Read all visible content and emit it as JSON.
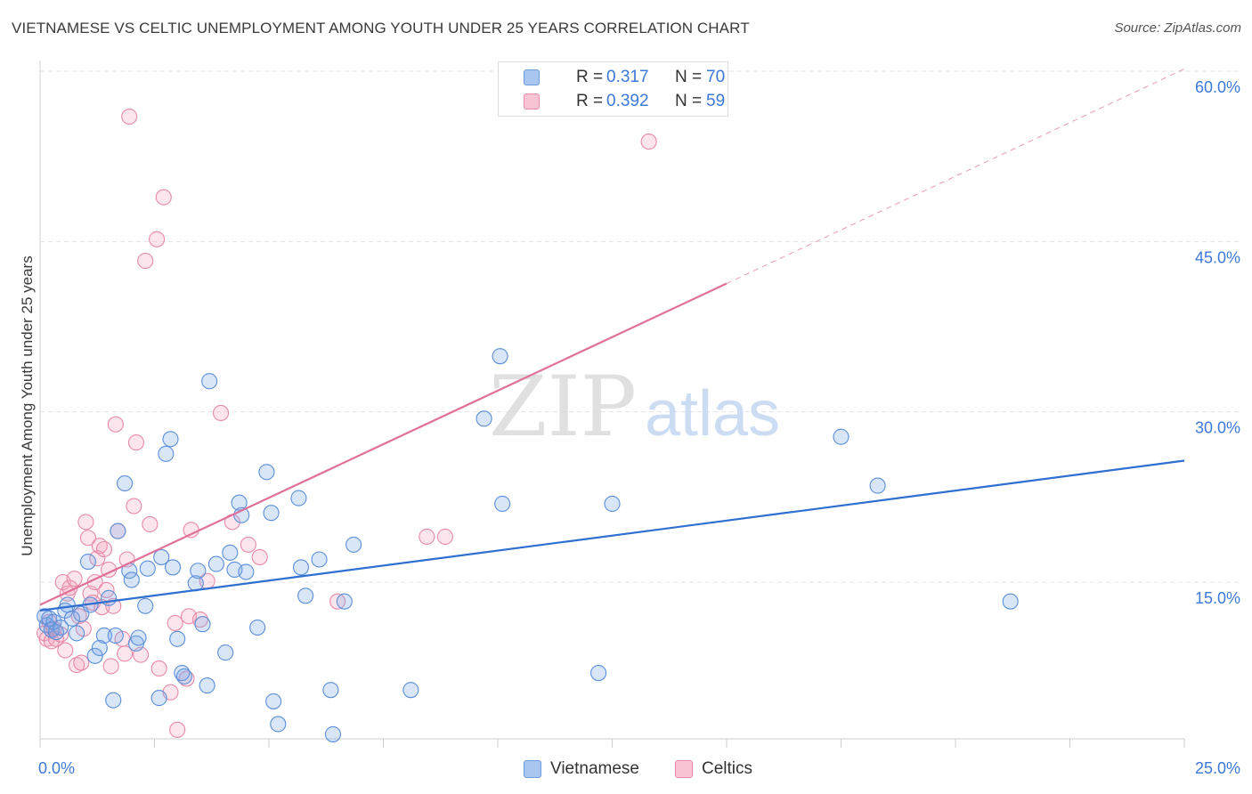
{
  "header": {
    "title": "VIETNAMESE VS CELTIC UNEMPLOYMENT AMONG YOUTH UNDER 25 YEARS CORRELATION CHART",
    "source": "Source: ZipAtlas.com"
  },
  "watermark": {
    "zip": "ZIP",
    "atlas": "atlas"
  },
  "legend_top": [
    {
      "r_label": "R =",
      "r_value": "0.317",
      "n_label": "N =",
      "n_value": "70",
      "swatch_color": "#a9c6f0",
      "swatch_border": "#6d9be0"
    },
    {
      "r_label": "R =",
      "r_value": "0.392",
      "n_label": "N =",
      "n_value": "59",
      "swatch_color": "#f8c3d3",
      "swatch_border": "#e88aa8"
    }
  ],
  "legend_bottom": [
    {
      "label": "Vietnamese",
      "swatch_color": "#a9c6f0",
      "swatch_border": "#6d9be0"
    },
    {
      "label": "Celtics",
      "swatch_color": "#f8c3d3",
      "swatch_border": "#e88aa8"
    }
  ],
  "colors": {
    "vietnamese_fill": "rgba(120,165,230,0.28)",
    "vietnamese_stroke": "#5b8fd9",
    "vietnamese_line": "#2f6fd0",
    "celtics_fill": "rgba(244,160,185,0.28)",
    "celtics_stroke": "#e88aa8",
    "celtics_line": "#e0709a",
    "grid": "#e3e3e3",
    "axis_label": "#3c78d8"
  },
  "chart_data": {
    "type": "scatter",
    "title": "VIETNAMESE VS CELTIC UNEMPLOYMENT AMONG YOUTH UNDER 25 YEARS CORRELATION CHART",
    "xlabel": "",
    "ylabel": "Unemployment Among Youth under 25 years",
    "xlim": [
      0,
      25
    ],
    "ylim": [
      0,
      62
    ],
    "x_tick_labels": [
      {
        "value": 0,
        "label": "0.0%"
      },
      {
        "value": 25,
        "label": "25.0%"
      }
    ],
    "y_tick_labels": [
      {
        "value": 15,
        "label": "15.0%"
      },
      {
        "value": 30,
        "label": "30.0%"
      },
      {
        "value": 45,
        "label": "45.0%"
      },
      {
        "value": 60,
        "label": "60.0%"
      }
    ],
    "grid": true,
    "legend_position": "top-center",
    "series": [
      {
        "name": "Vietnamese",
        "points": [
          [
            0.1,
            12.0
          ],
          [
            0.15,
            11.2
          ],
          [
            0.2,
            11.8
          ],
          [
            0.25,
            10.8
          ],
          [
            0.3,
            11.5
          ],
          [
            0.35,
            10.6
          ],
          [
            0.45,
            11.0
          ],
          [
            0.55,
            12.5
          ],
          [
            0.6,
            13.0
          ],
          [
            0.7,
            11.8
          ],
          [
            0.8,
            10.5
          ],
          [
            0.9,
            12.2
          ],
          [
            1.05,
            16.8
          ],
          [
            1.1,
            13.0
          ],
          [
            1.2,
            8.5
          ],
          [
            1.3,
            9.2
          ],
          [
            1.4,
            10.3
          ],
          [
            1.5,
            13.6
          ],
          [
            1.6,
            4.6
          ],
          [
            1.65,
            10.3
          ],
          [
            1.7,
            19.5
          ],
          [
            1.85,
            23.7
          ],
          [
            1.95,
            16.0
          ],
          [
            2.0,
            15.2
          ],
          [
            2.1,
            9.6
          ],
          [
            2.15,
            10.1
          ],
          [
            2.3,
            12.9
          ],
          [
            2.35,
            16.2
          ],
          [
            2.6,
            4.8
          ],
          [
            2.65,
            17.2
          ],
          [
            2.75,
            26.3
          ],
          [
            2.85,
            27.6
          ],
          [
            2.9,
            16.3
          ],
          [
            3.0,
            10.0
          ],
          [
            3.1,
            7.0
          ],
          [
            3.15,
            6.7
          ],
          [
            3.4,
            14.9
          ],
          [
            3.45,
            16.0
          ],
          [
            3.55,
            11.3
          ],
          [
            3.65,
            5.9
          ],
          [
            3.7,
            32.7
          ],
          [
            3.85,
            16.6
          ],
          [
            4.05,
            8.8
          ],
          [
            4.15,
            17.6
          ],
          [
            4.25,
            16.1
          ],
          [
            4.35,
            22.0
          ],
          [
            4.4,
            20.9
          ],
          [
            4.5,
            15.9
          ],
          [
            4.75,
            11.0
          ],
          [
            4.95,
            24.7
          ],
          [
            5.05,
            21.1
          ],
          [
            5.1,
            4.5
          ],
          [
            5.2,
            2.5
          ],
          [
            5.65,
            22.4
          ],
          [
            5.7,
            16.3
          ],
          [
            5.8,
            13.8
          ],
          [
            6.1,
            17.0
          ],
          [
            6.35,
            5.5
          ],
          [
            6.4,
            1.6
          ],
          [
            6.65,
            13.3
          ],
          [
            6.85,
            18.3
          ],
          [
            8.1,
            5.5
          ],
          [
            9.7,
            29.4
          ],
          [
            10.05,
            34.9
          ],
          [
            10.1,
            21.9
          ],
          [
            12.2,
            7.0
          ],
          [
            12.5,
            21.9
          ],
          [
            17.5,
            27.8
          ],
          [
            18.3,
            23.5
          ],
          [
            21.2,
            13.3
          ]
        ]
      },
      {
        "name": "Celtics",
        "points": [
          [
            0.1,
            10.5
          ],
          [
            0.15,
            10.0
          ],
          [
            0.2,
            11.5
          ],
          [
            0.25,
            9.8
          ],
          [
            0.3,
            10.9
          ],
          [
            0.35,
            10.0
          ],
          [
            0.45,
            10.4
          ],
          [
            0.5,
            15.0
          ],
          [
            0.55,
            9.0
          ],
          [
            0.6,
            14.0
          ],
          [
            0.65,
            14.5
          ],
          [
            0.75,
            15.3
          ],
          [
            0.8,
            7.7
          ],
          [
            0.85,
            12.0
          ],
          [
            0.9,
            7.9
          ],
          [
            0.95,
            10.9
          ],
          [
            1.0,
            20.3
          ],
          [
            1.05,
            18.9
          ],
          [
            1.1,
            14.0
          ],
          [
            1.15,
            13.2
          ],
          [
            1.2,
            15.0
          ],
          [
            1.25,
            17.1
          ],
          [
            1.3,
            18.2
          ],
          [
            1.35,
            12.8
          ],
          [
            1.4,
            17.9
          ],
          [
            1.45,
            14.3
          ],
          [
            1.5,
            16.1
          ],
          [
            1.55,
            7.6
          ],
          [
            1.6,
            12.9
          ],
          [
            1.65,
            28.9
          ],
          [
            1.7,
            19.5
          ],
          [
            1.8,
            10.0
          ],
          [
            1.85,
            8.7
          ],
          [
            1.9,
            17.0
          ],
          [
            1.95,
            56.0
          ],
          [
            2.05,
            21.7
          ],
          [
            2.1,
            27.3
          ],
          [
            2.2,
            8.6
          ],
          [
            2.3,
            43.3
          ],
          [
            2.4,
            20.1
          ],
          [
            2.55,
            45.2
          ],
          [
            2.6,
            7.4
          ],
          [
            2.7,
            48.9
          ],
          [
            2.85,
            5.3
          ],
          [
            2.95,
            11.4
          ],
          [
            3.0,
            2.0
          ],
          [
            3.2,
            6.5
          ],
          [
            3.25,
            12.0
          ],
          [
            3.3,
            19.6
          ],
          [
            3.5,
            11.7
          ],
          [
            3.65,
            15.1
          ],
          [
            3.95,
            29.9
          ],
          [
            4.2,
            20.3
          ],
          [
            4.55,
            18.3
          ],
          [
            4.8,
            17.2
          ],
          [
            6.5,
            13.3
          ],
          [
            8.45,
            19.0
          ],
          [
            8.85,
            19.0
          ],
          [
            13.3,
            53.8
          ]
        ]
      }
    ],
    "trend_lines": [
      {
        "series": "Vietnamese",
        "x": [
          0,
          25
        ],
        "y": [
          12.5,
          25.7
        ]
      },
      {
        "series": "Celtics",
        "x": [
          0,
          15
        ],
        "y": [
          13.0,
          41.3
        ],
        "dashed_extension_x": [
          15,
          25
        ],
        "dashed_extension_y": [
          41.3,
          60.2
        ]
      }
    ]
  }
}
